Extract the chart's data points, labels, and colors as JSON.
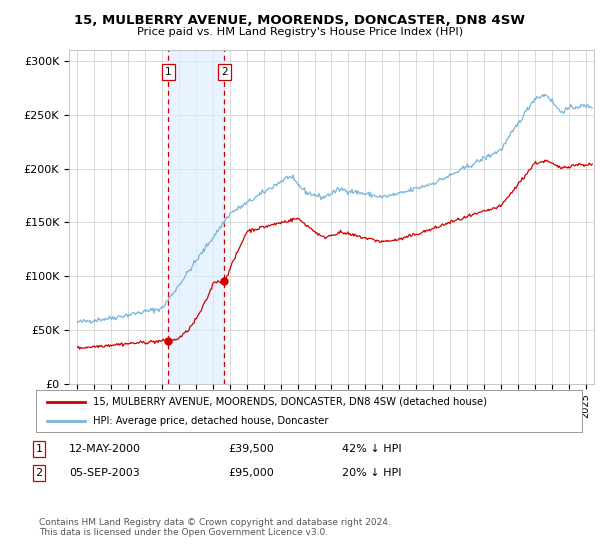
{
  "title": "15, MULBERRY AVENUE, MOORENDS, DONCASTER, DN8 4SW",
  "subtitle": "Price paid vs. HM Land Registry's House Price Index (HPI)",
  "hpi_color": "#7ab4d8",
  "price_color": "#cc0000",
  "marker_color": "#cc0000",
  "background_color": "#ffffff",
  "grid_color": "#cccccc",
  "shade_color": "#ddeeff",
  "dashed_color": "#cc0000",
  "ylabel_ticks": [
    "£0",
    "£50K",
    "£100K",
    "£150K",
    "£200K",
    "£250K",
    "£300K"
  ],
  "ytick_values": [
    0,
    50000,
    100000,
    150000,
    200000,
    250000,
    300000
  ],
  "ylim": [
    0,
    310000
  ],
  "xlim_start": 1994.5,
  "xlim_end": 2025.5,
  "sale1_date": 2000.36,
  "sale1_price": 39500,
  "sale1_label": "1",
  "sale2_date": 2003.67,
  "sale2_price": 95000,
  "sale2_label": "2",
  "legend_line1": "15, MULBERRY AVENUE, MOORENDS, DONCASTER, DN8 4SW (detached house)",
  "legend_line2": "HPI: Average price, detached house, Doncaster",
  "table_row1": [
    "1",
    "12-MAY-2000",
    "£39,500",
    "42% ↓ HPI"
  ],
  "table_row2": [
    "2",
    "05-SEP-2003",
    "£95,000",
    "20% ↓ HPI"
  ],
  "footer": "Contains HM Land Registry data © Crown copyright and database right 2024.\nThis data is licensed under the Open Government Licence v3.0.",
  "xtick_years": [
    1995,
    1996,
    1997,
    1998,
    1999,
    2000,
    2001,
    2002,
    2003,
    2004,
    2005,
    2006,
    2007,
    2008,
    2009,
    2010,
    2011,
    2012,
    2013,
    2014,
    2015,
    2016,
    2017,
    2018,
    2019,
    2020,
    2021,
    2022,
    2023,
    2024,
    2025
  ]
}
